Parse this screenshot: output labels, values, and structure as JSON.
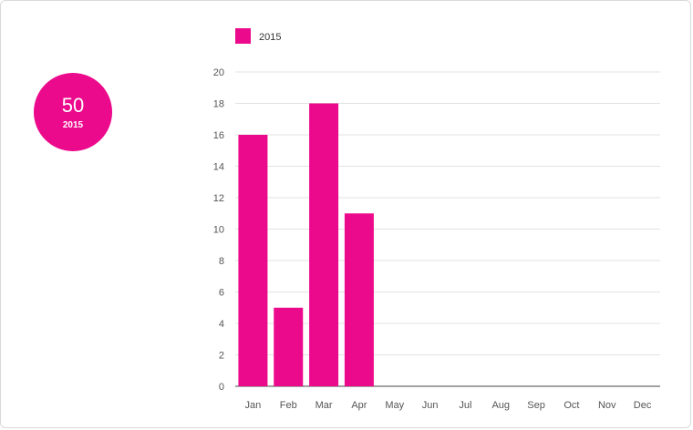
{
  "summary": {
    "total": "50",
    "year": "2015",
    "color": "#ec0a8c"
  },
  "chart_data": {
    "type": "bar",
    "categories": [
      "Jan",
      "Feb",
      "Mar",
      "Apr",
      "May",
      "Jun",
      "Jul",
      "Aug",
      "Sep",
      "Oct",
      "Nov",
      "Dec"
    ],
    "series": [
      {
        "name": "2015",
        "values": [
          16,
          5,
          18,
          11,
          null,
          null,
          null,
          null,
          null,
          null,
          null,
          null
        ],
        "color": "#ec0a8c"
      }
    ],
    "yticks": [
      0,
      2,
      4,
      6,
      8,
      10,
      12,
      14,
      16,
      18,
      20
    ],
    "ylim": [
      0,
      20
    ],
    "grid": true,
    "legend": "top-left",
    "title": "",
    "xlabel": "",
    "ylabel": ""
  }
}
